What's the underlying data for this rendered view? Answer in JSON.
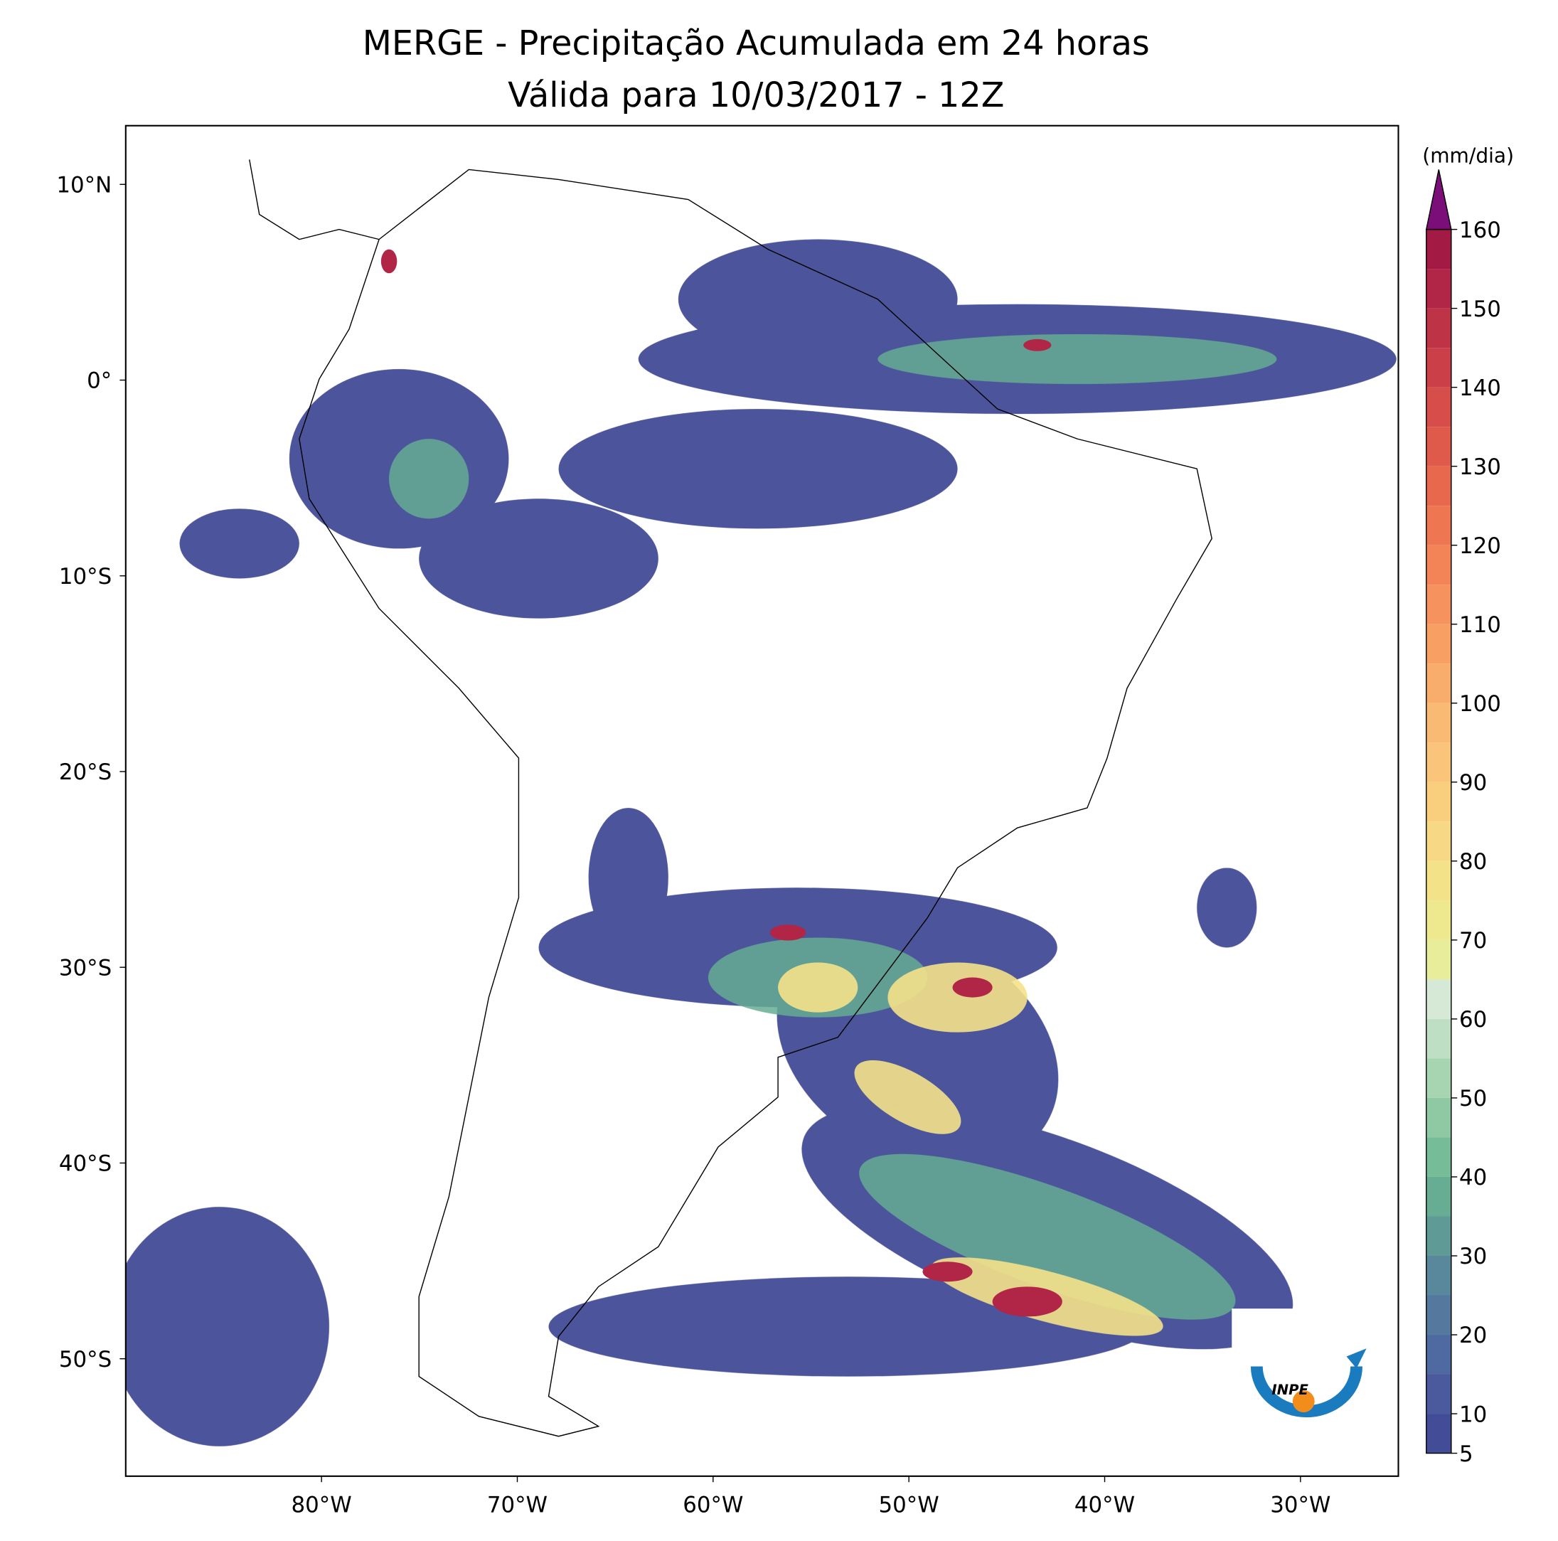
{
  "chart_data": {
    "type": "map",
    "title": "MERGE - Precipitação Acumulada em 24 horas",
    "subtitle": "Válida para 10/03/2017 - 12Z",
    "xlim": [
      -90,
      -25
    ],
    "ylim": [
      -56,
      13
    ],
    "xticks": [
      {
        "value": -80,
        "label": "80°W"
      },
      {
        "value": -70,
        "label": "70°W"
      },
      {
        "value": -60,
        "label": "60°W"
      },
      {
        "value": -50,
        "label": "50°W"
      },
      {
        "value": -40,
        "label": "40°W"
      },
      {
        "value": -30,
        "label": "30°W"
      }
    ],
    "yticks": [
      {
        "value": 10,
        "label": "10°N"
      },
      {
        "value": 0,
        "label": "0°"
      },
      {
        "value": -10,
        "label": "10°S"
      },
      {
        "value": -20,
        "label": "20°S"
      },
      {
        "value": -30,
        "label": "30°S"
      },
      {
        "value": -40,
        "label": "40°S"
      },
      {
        "value": -50,
        "label": "50°S"
      }
    ],
    "colorbar": {
      "label": "(mm/dia)",
      "levels": [
        5,
        10,
        15,
        20,
        25,
        30,
        35,
        40,
        45,
        50,
        55,
        60,
        65,
        70,
        75,
        80,
        85,
        90,
        95,
        100,
        105,
        110,
        115,
        120,
        125,
        130,
        135,
        140,
        145,
        150,
        155,
        160
      ],
      "colors": [
        "#434c97",
        "#4a5a9c",
        "#4f6aa1",
        "#55789f",
        "#59879c",
        "#5f9a96",
        "#66ad93",
        "#77bc98",
        "#8fc9a3",
        "#a7d4b1",
        "#bfdfc4",
        "#d6e8d6",
        "#e7ed9a",
        "#eee98f",
        "#f4e289",
        "#f7d985",
        "#f9cf7e",
        "#fac57a",
        "#f9ba73",
        "#f9ad6c",
        "#f89f64",
        "#f5925d",
        "#f28457",
        "#ee7651",
        "#e8684d",
        "#df5a4b",
        "#d64d4a",
        "#cb3f49",
        "#bf3347",
        "#b12646",
        "#a31b45"
      ],
      "extend_color": "#7b0e78",
      "ylim": [
        5,
        160
      ],
      "yticks": [
        5,
        10,
        20,
        30,
        40,
        50,
        60,
        70,
        80,
        90,
        100,
        110,
        120,
        130,
        140,
        150,
        160
      ]
    },
    "logo": "INPE"
  }
}
